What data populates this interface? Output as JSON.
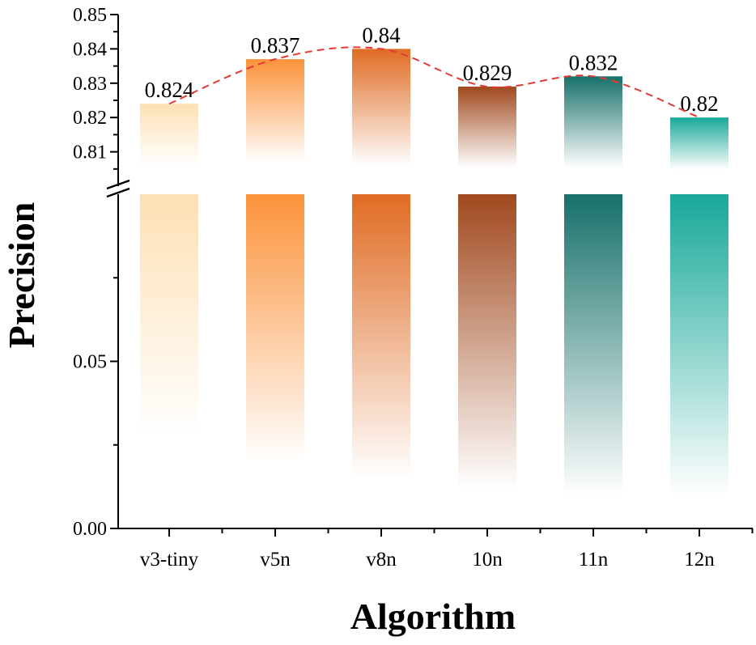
{
  "chart_data": {
    "type": "bar",
    "xlabel": "Algorithm",
    "ylabel": "Precision",
    "categories": [
      "v3-tiny",
      "v5n",
      "v8n",
      "10n",
      "11n",
      "12n"
    ],
    "values": [
      0.824,
      0.837,
      0.84,
      0.829,
      0.832,
      0.82
    ],
    "value_labels": [
      "0.824",
      "0.837",
      "0.84",
      "0.829",
      "0.832",
      "0.82"
    ],
    "colors": [
      "#fde0b4",
      "#fb923a",
      "#e06b23",
      "#a0491e",
      "#17706a",
      "#18a899"
    ],
    "axis_break": true,
    "lower_segment": {
      "ylim": [
        0,
        0.1
      ],
      "ticks": [
        0.0,
        0.05
      ],
      "tick_labels": [
        "0.00",
        "0.05"
      ]
    },
    "upper_segment": {
      "ylim": [
        0.8,
        0.85
      ],
      "ticks": [
        0.81,
        0.82,
        0.83,
        0.84,
        0.85
      ],
      "tick_labels": [
        "0.81",
        "0.82",
        "0.83",
        "0.84",
        "0.85"
      ]
    },
    "trend_line": {
      "style": "dashed",
      "color": "#e53935",
      "smooth": true
    },
    "grid": false,
    "legend": "none"
  }
}
